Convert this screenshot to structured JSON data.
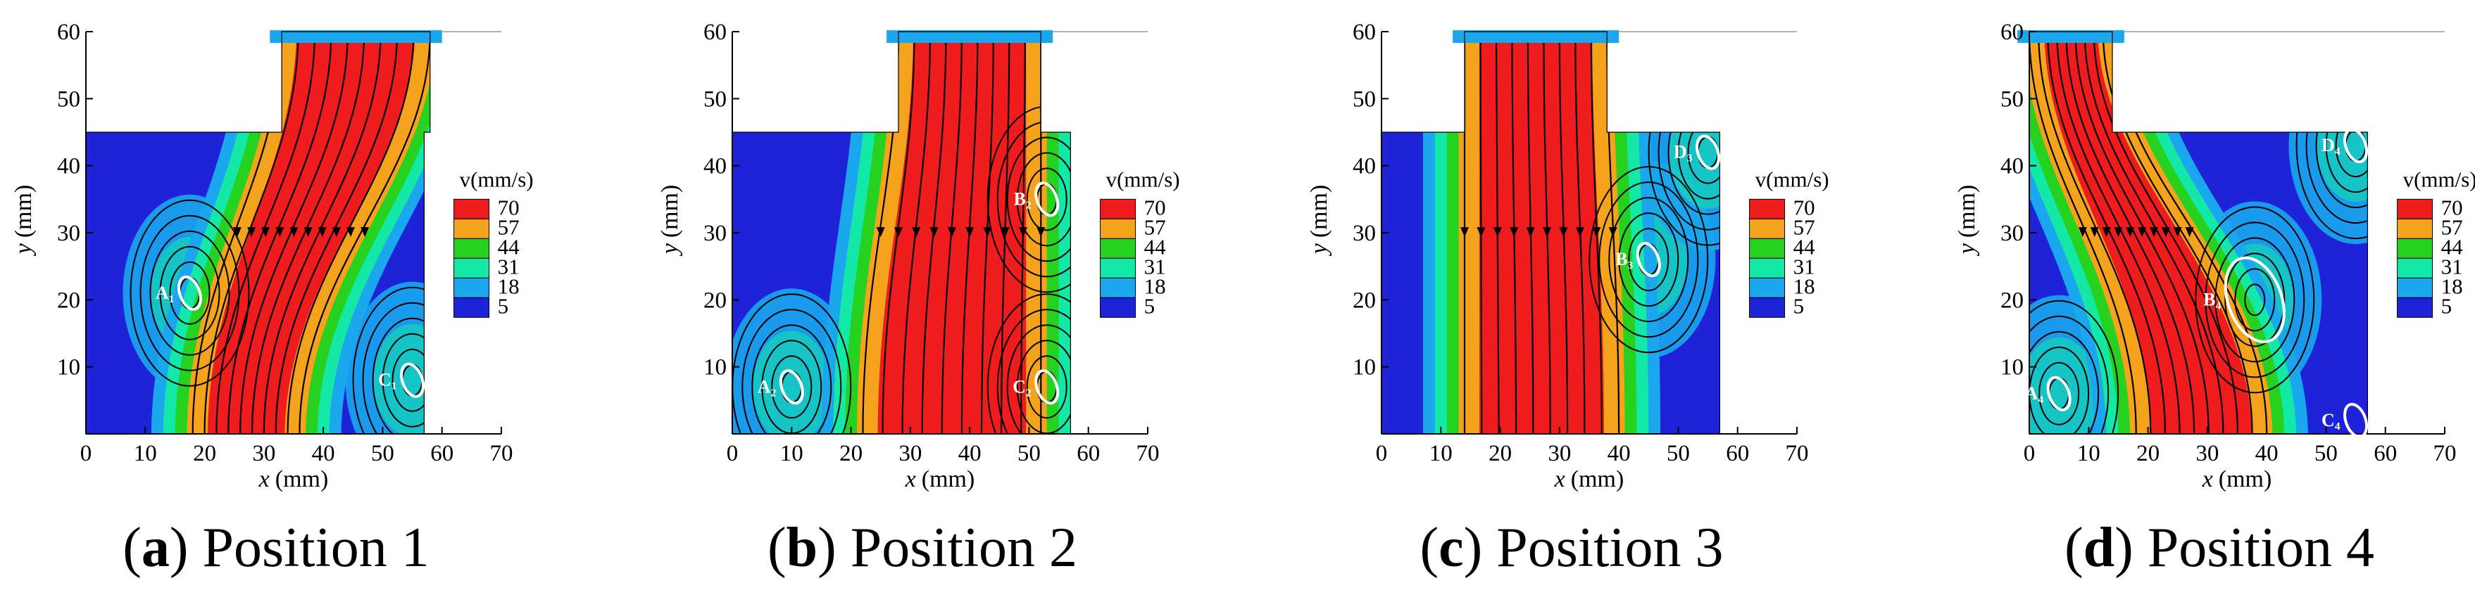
{
  "figure_title": "",
  "chart_data": [
    {
      "type": "heatmap",
      "panel_id": "a",
      "caption_letter": "a",
      "caption_text": "Position 1",
      "xlabel": "x",
      "xunit": "(mm)",
      "ylabel": "y",
      "yunit": "(mm)",
      "xlim": [
        0,
        70
      ],
      "ylim": [
        0,
        60
      ],
      "xticks": [
        "0",
        "10",
        "20",
        "30",
        "40",
        "50",
        "60",
        "70"
      ],
      "yticks": [
        "10",
        "20",
        "30",
        "40",
        "50",
        "60"
      ],
      "colorbar_title": "v(mm/s)",
      "colorbar_levels": [
        70,
        57,
        44,
        31,
        18,
        5
      ],
      "jet": {
        "x_bottom": [
          18,
          36
        ],
        "x_top": [
          33,
          58
        ]
      },
      "points": [
        {
          "label": "A₁",
          "x": 17.5,
          "y": 21
        },
        {
          "label": "C₁",
          "x": 55,
          "y": 8
        }
      ]
    },
    {
      "type": "heatmap",
      "panel_id": "b",
      "caption_letter": "b",
      "caption_text": "Position 2",
      "xlabel": "x",
      "xunit": "(mm)",
      "ylabel": "y",
      "yunit": "(mm)",
      "xlim": [
        0,
        70
      ],
      "ylim": [
        0,
        60
      ],
      "xticks": [
        "0",
        "10",
        "20",
        "30",
        "40",
        "50",
        "60",
        "70"
      ],
      "yticks": [
        "10",
        "20",
        "30",
        "40",
        "50",
        "60"
      ],
      "colorbar_title": "v(mm/s)",
      "colorbar_levels": [
        70,
        57,
        44,
        31,
        18,
        5
      ],
      "jet": {
        "x_bottom": [
          22,
          52
        ],
        "x_top": [
          28,
          52
        ]
      },
      "points": [
        {
          "label": "A₂",
          "x": 10,
          "y": 7
        },
        {
          "label": "B₂",
          "x": 53,
          "y": 35
        },
        {
          "label": "C₂",
          "x": 53,
          "y": 7
        }
      ]
    },
    {
      "type": "heatmap",
      "panel_id": "c",
      "caption_letter": "c",
      "caption_text": "Position 3",
      "xlabel": "x",
      "xunit": "(mm)",
      "ylabel": "y",
      "yunit": "(mm)",
      "xlim": [
        0,
        70
      ],
      "ylim": [
        0,
        60
      ],
      "xticks": [
        "0",
        "10",
        "20",
        "30",
        "40",
        "50",
        "60",
        "70"
      ],
      "yticks": [
        "10",
        "20",
        "30",
        "40",
        "50",
        "60"
      ],
      "colorbar_title": "v(mm/s)",
      "colorbar_levels": [
        70,
        57,
        44,
        31,
        18,
        5
      ],
      "jet": {
        "x_bottom": [
          14,
          40
        ],
        "x_top": [
          14,
          38
        ]
      },
      "points": [
        {
          "label": "B₃",
          "x": 45,
          "y": 26
        },
        {
          "label": "D₃",
          "x": 55,
          "y": 42
        }
      ]
    },
    {
      "type": "heatmap",
      "panel_id": "d",
      "caption_letter": "d",
      "caption_text": "Position 4",
      "xlabel": "x",
      "xunit": "(mm)",
      "ylabel": "y",
      "yunit": "(mm)",
      "xlim": [
        0,
        70
      ],
      "ylim": [
        0,
        60
      ],
      "xticks": [
        "0",
        "10",
        "20",
        "30",
        "40",
        "50",
        "60",
        "70"
      ],
      "yticks": [
        "10",
        "20",
        "30",
        "40",
        "50",
        "60"
      ],
      "colorbar_title": "v(mm/s)",
      "colorbar_levels": [
        70,
        57,
        44,
        31,
        18,
        5
      ],
      "jet": {
        "x_bottom": [
          18,
          40
        ],
        "x_top": [
          0,
          14
        ]
      },
      "points": [
        {
          "label": "A₄",
          "x": 5,
          "y": 6
        },
        {
          "label": "B₄",
          "x": 38,
          "y": 20
        },
        {
          "label": "C₄",
          "x": 55,
          "y": 2
        },
        {
          "label": "D₄",
          "x": 55,
          "y": 43
        }
      ]
    }
  ],
  "colors": {
    "c5": "#1f23d8",
    "c18": "#1aa7ee",
    "c31": "#14e8a7",
    "c44": "#27d11f",
    "c57": "#f5a31d",
    "c70": "#ee1c1c",
    "ellipse": "#ffffff"
  }
}
